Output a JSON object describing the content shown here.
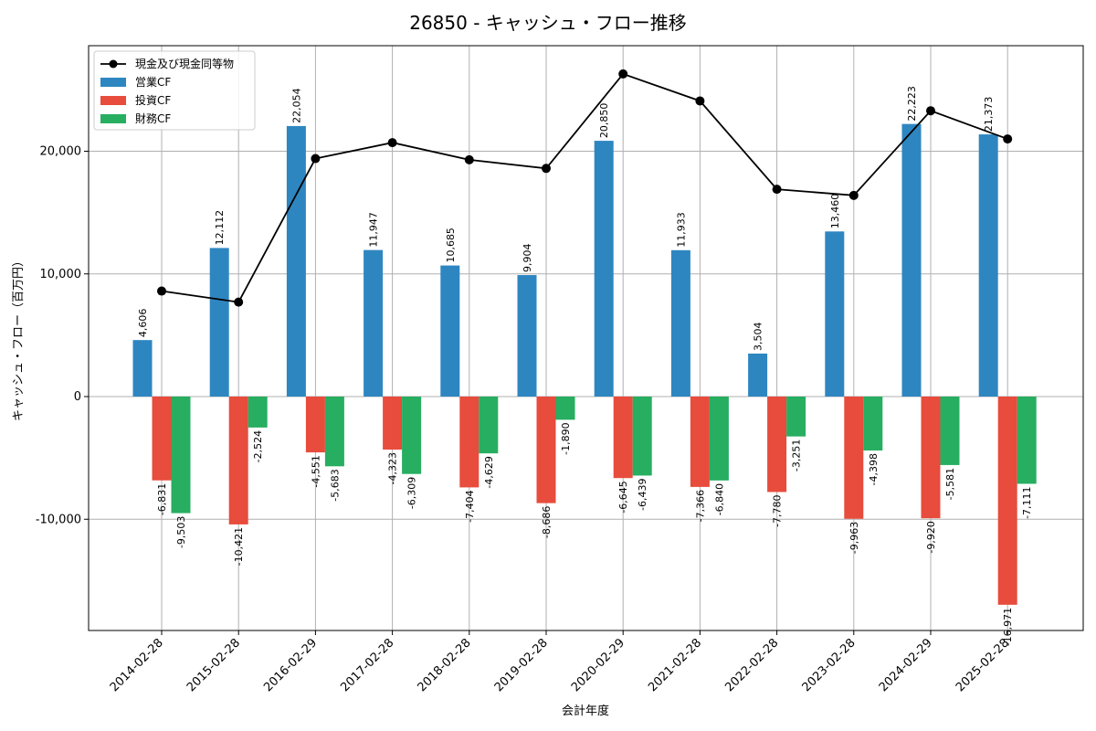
{
  "chart_data": {
    "type": "bar",
    "title": "26850 - キャッシュ・フロー推移",
    "xlabel": "会計年度",
    "ylabel": "キャッシュ・フロー（百万円）",
    "categories": [
      "2014-02-28",
      "2015-02-28",
      "2016-02-29",
      "2017-02-28",
      "2018-02-28",
      "2019-02-28",
      "2020-02-29",
      "2021-02-28",
      "2022-02-28",
      "2023-02-28",
      "2024-02-29",
      "2025-02-28"
    ],
    "ylim": [
      -19000,
      28500
    ],
    "yticks": [
      -10000,
      0,
      10000,
      20000
    ],
    "ytick_labels": [
      "-10,000",
      "0",
      "10,000",
      "20,000"
    ],
    "grid": true,
    "legend_position": "top-left",
    "series": [
      {
        "name": "営業CF",
        "kind": "bar",
        "color": "#2e86c1",
        "values": [
          4606,
          12112,
          22054,
          11947,
          10685,
          9904,
          20850,
          11933,
          3504,
          13460,
          22223,
          21373
        ],
        "labels": [
          "4,606",
          "12,112",
          "22,054",
          "11,947",
          "10,685",
          "9,904",
          "20,850",
          "11,933",
          "3,504",
          "13,460",
          "22,223",
          "21,373"
        ]
      },
      {
        "name": "投資CF",
        "kind": "bar",
        "color": "#e74c3c",
        "values": [
          -6831,
          -10421,
          -4551,
          -4323,
          -7404,
          -8686,
          -6645,
          -7366,
          -7780,
          -9963,
          -9920,
          -16971
        ],
        "labels": [
          "-6,831",
          "-10,421",
          "-4,551",
          "-4,323",
          "-7,404",
          "-8,686",
          "-6,645",
          "-7,366",
          "-7,780",
          "-9,963",
          "-9,920",
          "-16,971"
        ]
      },
      {
        "name": "財務CF",
        "kind": "bar",
        "color": "#27ae60",
        "values": [
          -9503,
          -2524,
          -5683,
          -6309,
          -4629,
          -1890,
          -6439,
          -6840,
          -3251,
          -4398,
          -5581,
          -7111
        ],
        "labels": [
          "-9,503",
          "-2,524",
          "-5,683",
          "-6,309",
          "-4,629",
          "-1,890",
          "-6,439",
          "-6,840",
          "-3,251",
          "-4,398",
          "-5,581",
          "-7,111"
        ]
      },
      {
        "name": "現金及び現金同等物",
        "kind": "line",
        "color": "#000000",
        "values": [
          8600,
          7700,
          19400,
          20700,
          19300,
          18600,
          26300,
          24100,
          16900,
          16400,
          23300,
          21000
        ]
      }
    ]
  }
}
